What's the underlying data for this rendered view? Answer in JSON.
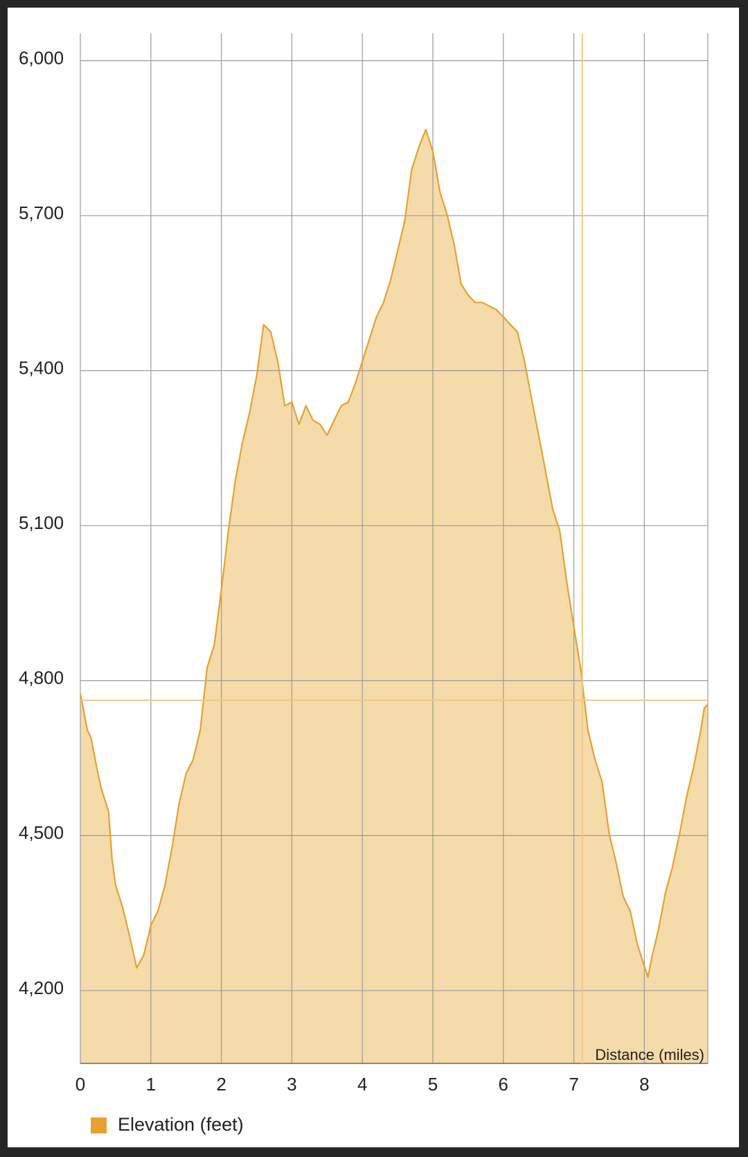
{
  "chart_data": {
    "type": "area",
    "x_label": "Distance (miles)",
    "x": [
      0,
      0.1,
      0.15,
      0.25,
      0.3,
      0.4,
      0.45,
      0.5,
      0.6,
      0.7,
      0.8,
      0.9,
      1.0,
      1.1,
      1.2,
      1.3,
      1.4,
      1.5,
      1.6,
      1.7,
      1.8,
      1.9,
      2.0,
      2.1,
      2.2,
      2.3,
      2.4,
      2.5,
      2.6,
      2.7,
      2.8,
      2.9,
      3.0,
      3.1,
      3.2,
      3.3,
      3.4,
      3.5,
      3.6,
      3.7,
      3.8,
      3.9,
      4.0,
      4.1,
      4.2,
      4.3,
      4.4,
      4.5,
      4.6,
      4.7,
      4.8,
      4.9,
      5.0,
      5.1,
      5.2,
      5.3,
      5.4,
      5.5,
      5.6,
      5.7,
      5.8,
      5.9,
      6.0,
      6.1,
      6.2,
      6.3,
      6.4,
      6.5,
      6.6,
      6.7,
      6.8,
      6.9,
      7.0,
      7.1,
      7.2,
      7.3,
      7.4,
      7.5,
      7.6,
      7.7,
      7.8,
      7.9,
      8.0,
      8.05,
      8.1,
      8.2,
      8.3,
      8.4,
      8.5,
      8.6,
      8.7,
      8.8,
      8.85,
      8.9
    ],
    "series": [
      {
        "name": "Elevation (feet)",
        "color": "#e8a030",
        "fill": "#f5dba9",
        "values": [
          4775,
          4704,
          4690,
          4620,
          4590,
          4547,
          4454,
          4404,
          4361,
          4304,
          4244,
          4269,
          4326,
          4354,
          4404,
          4476,
          4561,
          4620,
          4647,
          4704,
          4826,
          4869,
          4976,
          5090,
          5189,
          5261,
          5318,
          5389,
          5489,
          5475,
          5418,
          5332,
          5339,
          5296,
          5332,
          5304,
          5296,
          5275,
          5304,
          5332,
          5339,
          5375,
          5418,
          5461,
          5504,
          5532,
          5575,
          5632,
          5689,
          5789,
          5832,
          5867,
          5824,
          5746,
          5703,
          5646,
          5568,
          5546,
          5532,
          5532,
          5525,
          5518,
          5504,
          5489,
          5475,
          5418,
          5346,
          5275,
          5204,
          5132,
          5090,
          4990,
          4904,
          4819,
          4704,
          4647,
          4604,
          4504,
          4447,
          4382,
          4354,
          4290,
          4247,
          4226,
          4261,
          4318,
          4390,
          4440,
          4504,
          4576,
          4633,
          4704,
          4747,
          4754
        ]
      }
    ],
    "xlim": [
      0,
      8.9
    ],
    "ylim": [
      4059,
      6053
    ],
    "xticks": [
      0,
      1,
      2,
      3,
      4,
      5,
      6,
      7,
      8
    ],
    "yticks": [
      {
        "value": 4200,
        "label": "4,200"
      },
      {
        "value": 4500,
        "label": "4,500"
      },
      {
        "value": 4800,
        "label": "4,800"
      },
      {
        "value": 5100,
        "label": "5,100"
      },
      {
        "value": 5400,
        "label": "5,400"
      },
      {
        "value": 5700,
        "label": "5,700"
      },
      {
        "value": 6000,
        "label": "6,000"
      }
    ],
    "grid": true,
    "crosshair": {
      "x": 7.12,
      "y": 4762
    }
  }
}
